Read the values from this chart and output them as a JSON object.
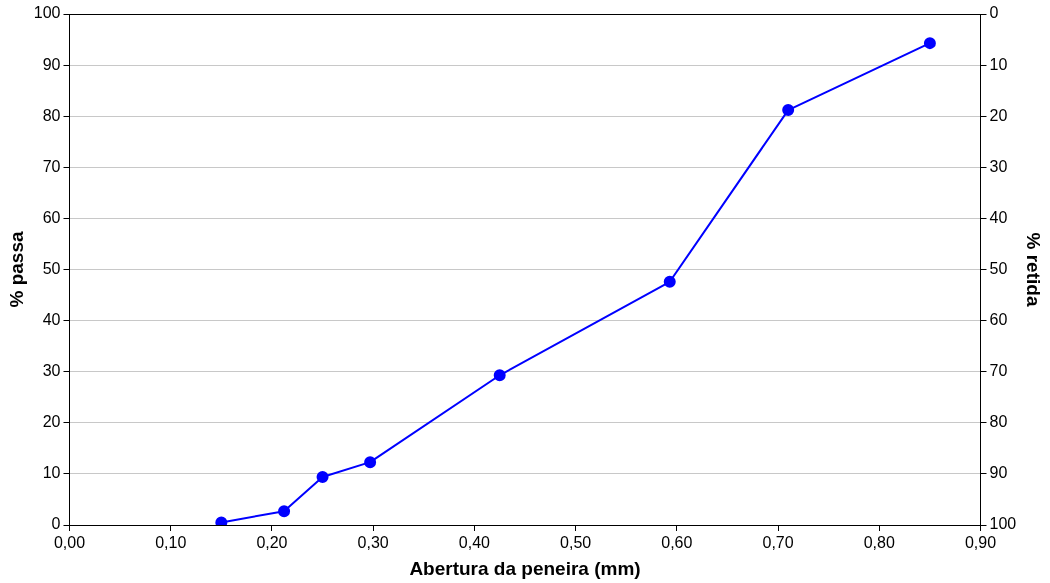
{
  "chart_data": {
    "type": "line",
    "xlabel": "Abertura da peneira (mm)",
    "ylabel": "% passa",
    "y2label": "% retida",
    "x": [
      0.15,
      0.212,
      0.25,
      0.297,
      0.425,
      0.593,
      0.71,
      0.85
    ],
    "series": [
      {
        "color": "#0000ff",
        "values": [
          0.5,
          2.7,
          9.4,
          12.3,
          29.3,
          47.6,
          81.2,
          94.3
        ]
      }
    ],
    "xlim": [
      0,
      0.9
    ],
    "xticks": [
      {
        "value": 0,
        "label": "0,00"
      },
      {
        "value": 0.1,
        "label": "0,10"
      },
      {
        "value": 0.2,
        "label": "0,20"
      },
      {
        "value": 0.3,
        "label": "0,30"
      },
      {
        "value": 0.4,
        "label": "0,40"
      },
      {
        "value": 0.5,
        "label": "0,50"
      },
      {
        "value": 0.6,
        "label": "0,60"
      },
      {
        "value": 0.7,
        "label": "0,70"
      },
      {
        "value": 0.8,
        "label": "0,80"
      },
      {
        "value": 0.9,
        "label": "0,90"
      }
    ],
    "ylim": [
      0,
      100
    ],
    "yticks": [
      0,
      10,
      20,
      30,
      40,
      50,
      60,
      70,
      80,
      90,
      100
    ],
    "y2lim": [
      100,
      0
    ],
    "y2ticks": [
      0,
      10,
      20,
      30,
      40,
      50,
      60,
      70,
      80,
      90,
      100
    ],
    "grid": "y",
    "legend": false,
    "marker": "circle",
    "line_style": "solid"
  }
}
